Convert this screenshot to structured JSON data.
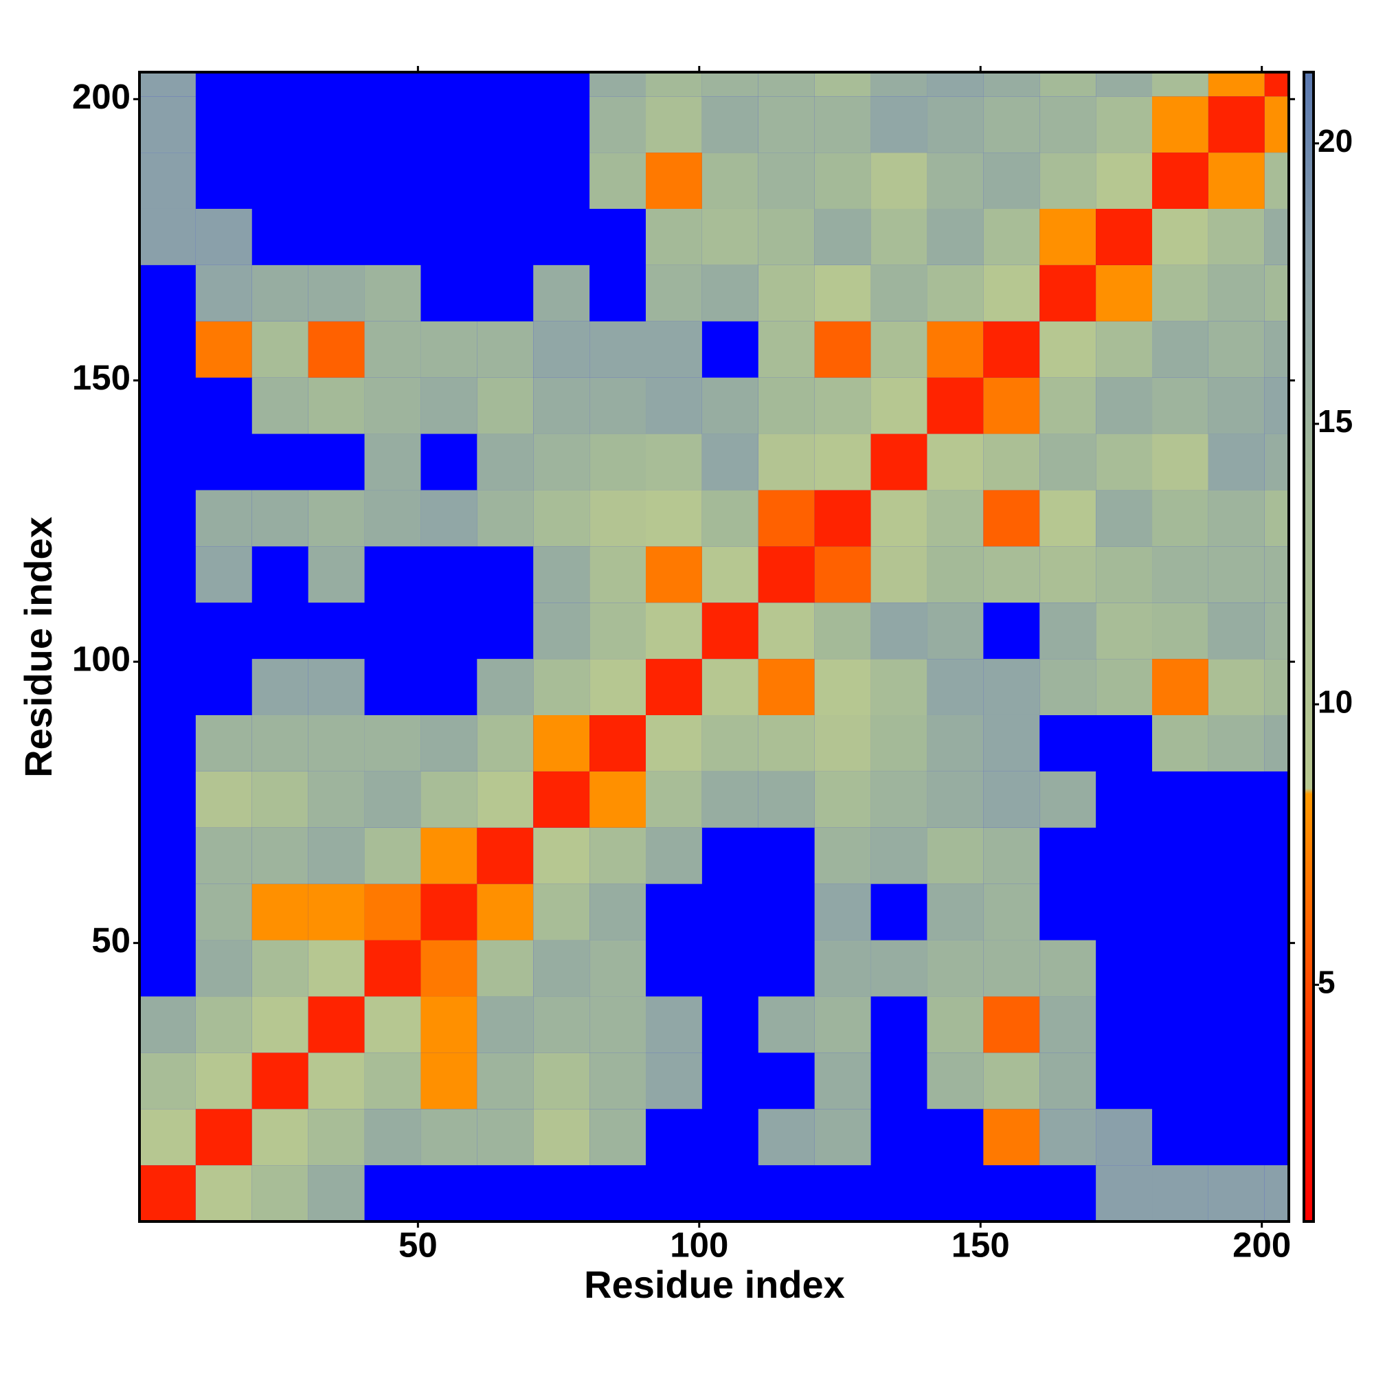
{
  "chart_data": {
    "type": "heatmap",
    "xlabel": "Residue index",
    "ylabel": "Residue index",
    "x": [
      5.5,
      15.5,
      25.5,
      35.5,
      45.5,
      55.5,
      65.5,
      75.5,
      85.5,
      95.5,
      105.5,
      115.5,
      125.5,
      135.5,
      145.5,
      155.5,
      165.5,
      175.5,
      185.5,
      195.5,
      205.5
    ],
    "y": [
      5.5,
      15.5,
      25.5,
      35.5,
      45.5,
      55.5,
      65.5,
      75.5,
      85.5,
      95.5,
      105.5,
      115.5,
      125.5,
      135.5,
      145.5,
      155.5,
      165.5,
      175.5,
      185.5,
      195.5,
      205.5
    ],
    "z": [
      [
        3,
        9,
        13,
        16,
        null,
        null,
        null,
        null,
        null,
        null,
        null,
        null,
        null,
        null,
        null,
        null,
        null,
        18,
        18,
        18,
        18
      ],
      [
        9,
        3,
        9,
        13,
        16,
        15,
        15,
        10,
        15,
        null,
        null,
        17,
        16,
        null,
        null,
        7,
        17,
        18,
        null,
        null,
        null
      ],
      [
        13,
        9,
        3,
        9,
        13,
        8,
        15,
        12,
        15,
        17,
        null,
        null,
        16,
        null,
        15,
        13,
        16,
        null,
        null,
        null,
        null
      ],
      [
        16,
        13,
        9,
        3,
        9,
        8,
        16,
        15,
        15,
        17,
        null,
        16,
        15,
        null,
        14,
        6,
        16,
        null,
        null,
        null,
        null
      ],
      [
        null,
        16,
        13,
        9,
        3,
        7,
        13,
        16,
        15,
        null,
        null,
        null,
        16,
        16,
        15,
        15,
        15,
        null,
        null,
        null,
        null
      ],
      [
        null,
        15,
        8,
        8,
        7,
        3,
        8,
        13,
        16,
        null,
        null,
        null,
        17,
        null,
        16,
        15,
        null,
        null,
        null,
        null,
        null
      ],
      [
        null,
        15,
        15,
        16,
        13,
        8,
        3,
        9,
        13,
        16,
        null,
        null,
        15,
        16,
        14,
        15,
        null,
        null,
        null,
        null,
        null
      ],
      [
        null,
        10,
        12,
        15,
        16,
        13,
        9,
        3,
        8,
        13,
        16,
        16,
        13,
        15,
        16,
        17,
        16,
        null,
        null,
        null,
        null
      ],
      [
        null,
        15,
        15,
        15,
        15,
        16,
        13,
        8,
        3,
        9,
        13,
        12,
        10,
        14,
        16,
        17,
        null,
        null,
        14,
        15,
        16
      ],
      [
        null,
        null,
        17,
        17,
        null,
        null,
        16,
        13,
        9,
        3,
        9,
        7,
        9,
        13,
        17,
        17,
        15,
        14,
        7,
        12,
        14
      ],
      [
        null,
        null,
        null,
        null,
        null,
        null,
        null,
        16,
        13,
        9,
        3,
        9,
        14,
        17,
        16,
        null,
        16,
        13,
        14,
        16,
        15
      ],
      [
        null,
        17,
        null,
        16,
        null,
        null,
        null,
        16,
        12,
        7,
        9,
        3,
        6,
        10,
        14,
        13,
        12,
        14,
        15,
        15,
        15
      ],
      [
        null,
        16,
        16,
        15,
        16,
        17,
        15,
        13,
        10,
        9,
        14,
        6,
        3,
        9,
        13,
        6,
        9,
        16,
        14,
        15,
        13
      ],
      [
        null,
        null,
        null,
        null,
        16,
        null,
        16,
        15,
        14,
        13,
        17,
        10,
        9,
        3,
        9,
        12,
        15,
        13,
        10,
        17,
        16
      ],
      [
        null,
        null,
        15,
        14,
        15,
        16,
        14,
        16,
        16,
        17,
        16,
        14,
        13,
        9,
        3,
        7,
        13,
        16,
        15,
        16,
        17
      ],
      [
        null,
        7,
        13,
        6,
        15,
        15,
        15,
        17,
        17,
        17,
        null,
        13,
        6,
        12,
        7,
        3,
        9,
        13,
        16,
        15,
        16
      ],
      [
        null,
        17,
        16,
        16,
        15,
        null,
        null,
        16,
        null,
        15,
        16,
        12,
        9,
        15,
        13,
        9,
        3,
        8,
        13,
        15,
        14
      ],
      [
        18,
        18,
        null,
        null,
        null,
        null,
        null,
        null,
        null,
        14,
        13,
        14,
        16,
        13,
        16,
        13,
        8,
        3,
        9,
        13,
        16
      ],
      [
        18,
        null,
        null,
        null,
        null,
        null,
        null,
        null,
        14,
        7,
        14,
        15,
        14,
        10,
        15,
        16,
        13,
        9,
        3,
        8,
        13
      ],
      [
        18,
        null,
        null,
        null,
        null,
        null,
        null,
        null,
        15,
        12,
        16,
        15,
        15,
        17,
        16,
        15,
        15,
        13,
        8,
        3,
        8
      ],
      [
        18,
        null,
        null,
        null,
        null,
        null,
        null,
        null,
        16,
        14,
        15,
        15,
        13,
        16,
        17,
        16,
        14,
        16,
        13,
        8,
        3
      ]
    ],
    "xlim": [
      0.5,
      204.8
    ],
    "ylim": [
      0.5,
      204.8
    ],
    "xticks": [
      50,
      100,
      150,
      200
    ],
    "yticks": [
      50,
      100,
      150,
      200
    ],
    "colorbar": {
      "lim": [
        0.78,
        21.27
      ],
      "ticks": [
        5,
        10,
        15,
        20
      ]
    },
    "colorscale": [
      [
        0.78,
        "#ff0000"
      ],
      [
        4,
        "#ff3300"
      ],
      [
        8.4,
        "#ff9900"
      ],
      [
        8.5,
        "#b8c890"
      ],
      [
        14,
        "#a4ba98"
      ],
      [
        18,
        "#8aa0aa"
      ],
      [
        21.27,
        "#5a78b0"
      ]
    ],
    "missing_color": "#0000ff"
  }
}
